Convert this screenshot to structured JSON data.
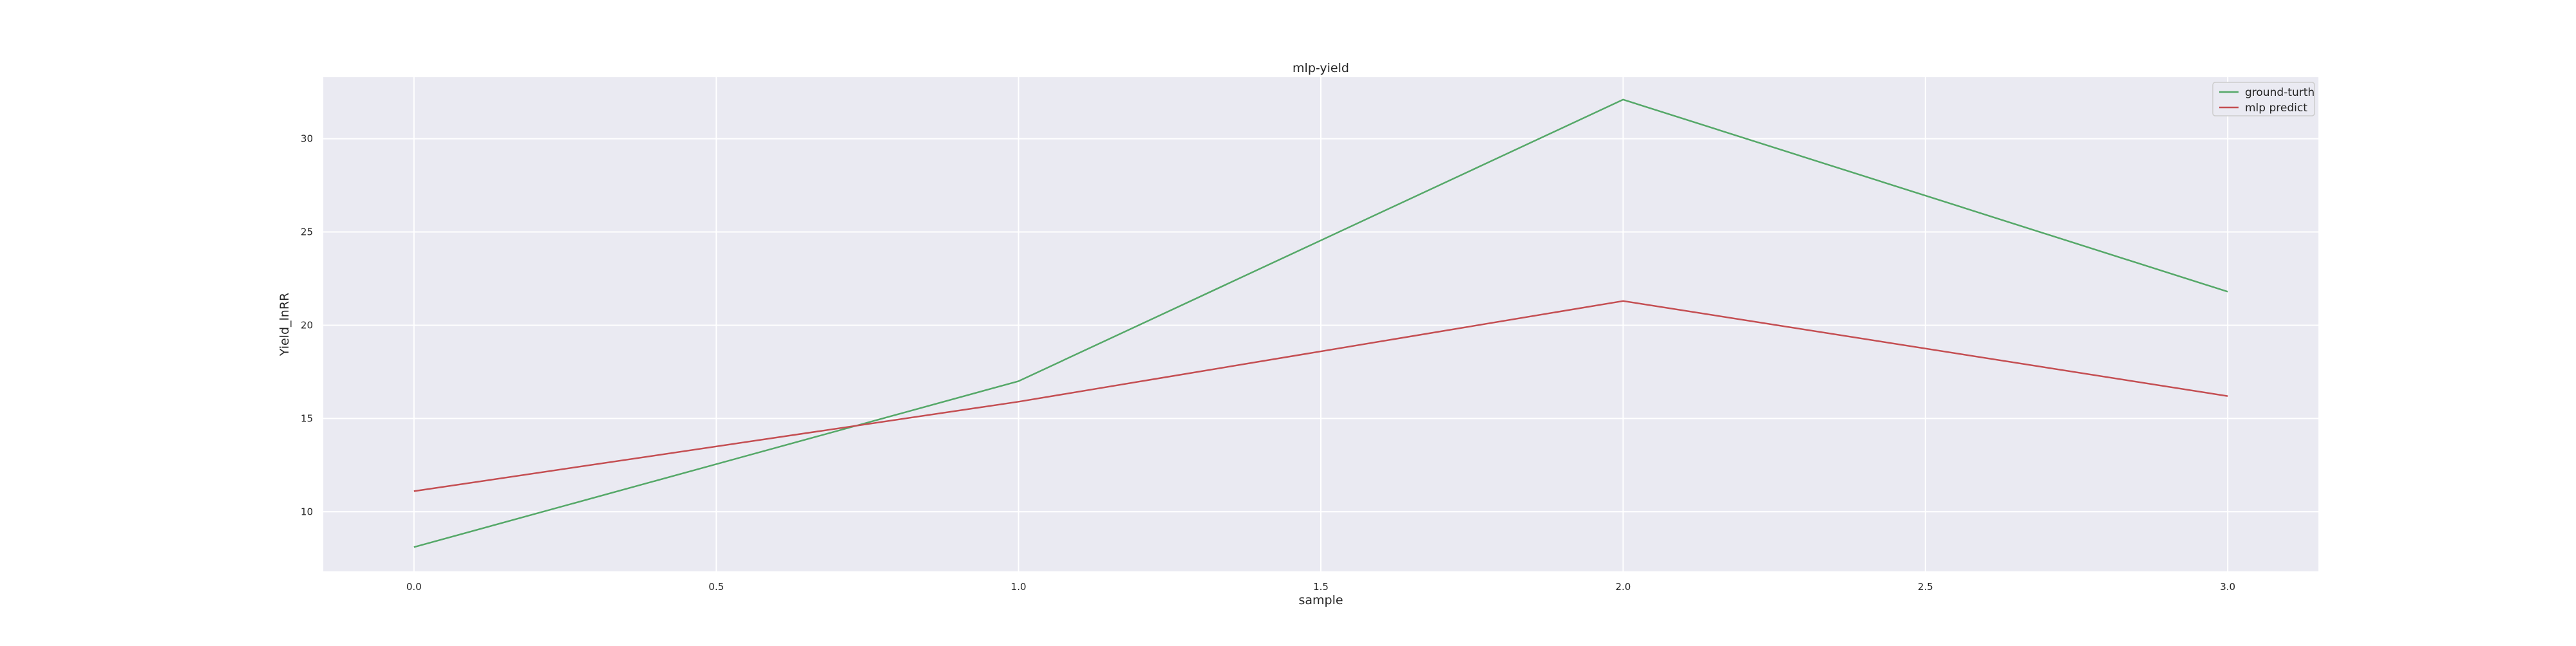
{
  "chart_data": {
    "type": "line",
    "title": "mlp-yield",
    "xlabel": "sample",
    "ylabel": "Yield_lnRR",
    "x": [
      0,
      1,
      2,
      3
    ],
    "xlim": [
      -0.15,
      3.15
    ],
    "ylim": [
      6.8,
      33.3
    ],
    "xticks": [
      0.0,
      0.5,
      1.0,
      1.5,
      2.0,
      2.5,
      3.0
    ],
    "xtick_labels": [
      "0.0",
      "0.5",
      "1.0",
      "1.5",
      "2.0",
      "2.5",
      "3.0"
    ],
    "yticks": [
      10,
      15,
      20,
      25,
      30
    ],
    "ytick_labels": [
      "10",
      "15",
      "20",
      "25",
      "30"
    ],
    "grid": true,
    "legend_position": "upper right",
    "background_color": "#eaeaf2",
    "grid_color": "#ffffff",
    "series": [
      {
        "name": "ground-turth",
        "color": "#55a868",
        "values": [
          8.1,
          17.0,
          32.1,
          21.8
        ]
      },
      {
        "name": "mlp predict",
        "color": "#c44e52",
        "values": [
          11.1,
          15.9,
          21.3,
          16.2
        ]
      }
    ]
  }
}
